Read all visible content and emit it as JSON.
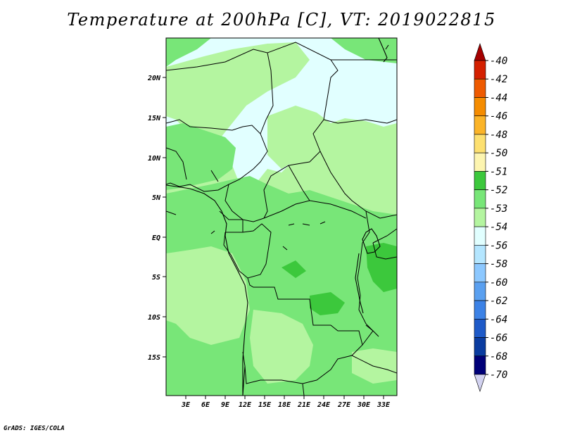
{
  "title": "Temperature at 200hPa [C], VT: 2019022815",
  "credit": "GrADS: IGES/COLA",
  "map": {
    "lat_labels": [
      "20N",
      "15N",
      "10N",
      "5N",
      "EQ",
      "5S",
      "10S",
      "15S"
    ],
    "lon_labels": [
      "3E",
      "6E",
      "9E",
      "12E",
      "15E",
      "18E",
      "21E",
      "24E",
      "27E",
      "30E",
      "33E"
    ]
  },
  "colorbar": {
    "labels": [
      "-40",
      "-42",
      "-44",
      "-46",
      "-48",
      "-50",
      "-51",
      "-52",
      "-53",
      "-54",
      "-56",
      "-58",
      "-60",
      "-62",
      "-64",
      "-66",
      "-68",
      "-70"
    ],
    "colors": [
      "#a50000",
      "#d42000",
      "#ee5a00",
      "#f58c00",
      "#fbb428",
      "#fde070",
      "#fdf5b0",
      "#3cc83c",
      "#78e678",
      "#b4f5a0",
      "#e1ffff",
      "#b4e6ff",
      "#8cc8ff",
      "#5aa0f0",
      "#3c82e6",
      "#1e5ac8",
      "#0a3ca0",
      "#000078",
      "#d2d2f0"
    ]
  },
  "field_colors": {
    "c_minus53": "#78e678",
    "c_minus54": "#b4f5a0",
    "c_minus56": "#e1ffff",
    "c_minus52": "#3cc83c"
  }
}
